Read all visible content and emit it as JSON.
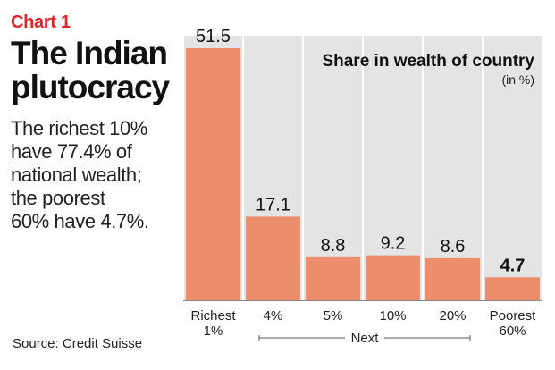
{
  "header": {
    "kicker": "Chart 1",
    "title_line1": "The Indian",
    "title_line2": "plutocracy",
    "subtitle_lines": [
      "The richest 10%",
      "have 77.4% of",
      "national wealth;",
      "the poorest",
      "60% have 4.7%."
    ]
  },
  "source": "Source: Credit Suisse",
  "chart_data": {
    "type": "bar",
    "title": "Share in wealth of country",
    "unit_label": "(in %)",
    "categories": [
      [
        "Richest",
        "1%"
      ],
      [
        "4%"
      ],
      [
        "5%"
      ],
      [
        "10%"
      ],
      [
        "20%"
      ],
      [
        "Poorest",
        "60%"
      ]
    ],
    "values": [
      51.5,
      17.1,
      8.8,
      9.2,
      8.6,
      4.7
    ],
    "value_labels": [
      "51.5",
      "17.1",
      "8.8",
      "9.2",
      "8.6",
      "4.7"
    ],
    "bold_value_index": 5,
    "group_label": "Next",
    "bar_color": "#ec8e6c",
    "column_bg": "#e4e4e4",
    "ylim": [
      0,
      51.5
    ]
  }
}
